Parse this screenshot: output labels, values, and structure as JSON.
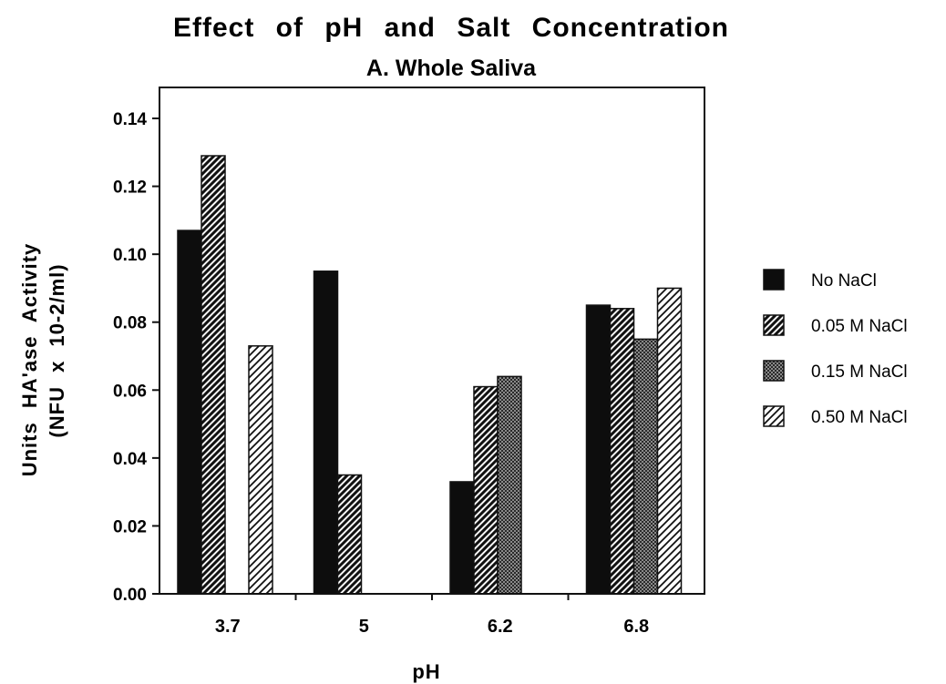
{
  "chart_data": {
    "type": "bar",
    "title": "Effect of pH and Salt Concentration",
    "subtitle": "A. Whole Saliva",
    "xlabel": "pH",
    "ylabel_line1": "Units HA'ase Activity",
    "ylabel_line2": "(NFU x 10-2/ml)",
    "categories": [
      "3.7",
      "5",
      "6.2",
      "6.8"
    ],
    "ylim": [
      0,
      0.14
    ],
    "yticks": [
      "0.00",
      "0.02",
      "0.04",
      "0.06",
      "0.08",
      "0.10",
      "0.12",
      "0.14"
    ],
    "legend_position": "right",
    "grid": false,
    "series": [
      {
        "name": "No NaCl",
        "pattern": "solid",
        "values": [
          0.107,
          0.095,
          0.033,
          0.085
        ]
      },
      {
        "name": "0.05 M NaCl",
        "pattern": "hatch-dense",
        "values": [
          0.129,
          0.035,
          0.061,
          0.084
        ]
      },
      {
        "name": "0.15 M NaCl",
        "pattern": "crosshatch",
        "values": [
          0,
          0,
          0.064,
          0.075
        ]
      },
      {
        "name": "0.50 M NaCl",
        "pattern": "hatch-light",
        "values": [
          0.073,
          0,
          0,
          0.09
        ]
      }
    ]
  }
}
